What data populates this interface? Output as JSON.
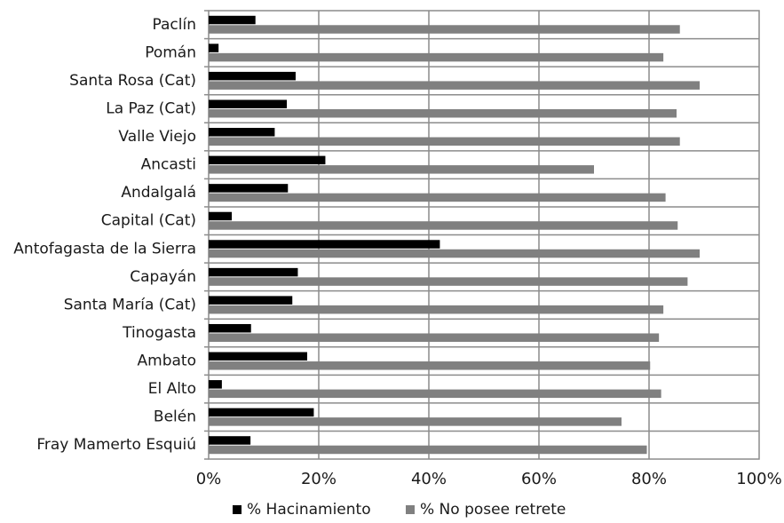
{
  "chart_data": {
    "type": "bar",
    "orientation": "horizontal",
    "title": "",
    "xlabel": "",
    "ylabel": "",
    "xlim": [
      0,
      100
    ],
    "x_ticks": [
      "0%",
      "20%",
      "40%",
      "60%",
      "80%",
      "100%"
    ],
    "grid": true,
    "legend_position": "bottom",
    "categories": [
      "Paclín",
      "Pomán",
      "Santa Rosa (Cat)",
      "La Paz (Cat)",
      "Valle Viejo",
      "Ancasti",
      "Andalgalá",
      "Capital (Cat)",
      "Antofagasta de la Sierra",
      "Capayán",
      "Santa María (Cat)",
      "Tinogasta",
      "Ambato",
      "El Alto",
      "Belén",
      "Fray Mamerto Esquiú"
    ],
    "series": [
      {
        "name": "% Hacinamiento",
        "color": "#000000",
        "values": [
          8.5,
          1.8,
          15.8,
          14.2,
          12.0,
          21.2,
          14.4,
          4.2,
          42.0,
          16.2,
          15.2,
          7.7,
          17.9,
          2.4,
          19.1,
          7.6
        ]
      },
      {
        "name": "% No posee retrete",
        "color": "#808080",
        "values": [
          85.6,
          82.6,
          89.2,
          85.0,
          85.6,
          70.0,
          83.0,
          85.2,
          89.2,
          87.0,
          82.6,
          81.8,
          80.2,
          82.2,
          75.0,
          79.6
        ]
      }
    ]
  }
}
